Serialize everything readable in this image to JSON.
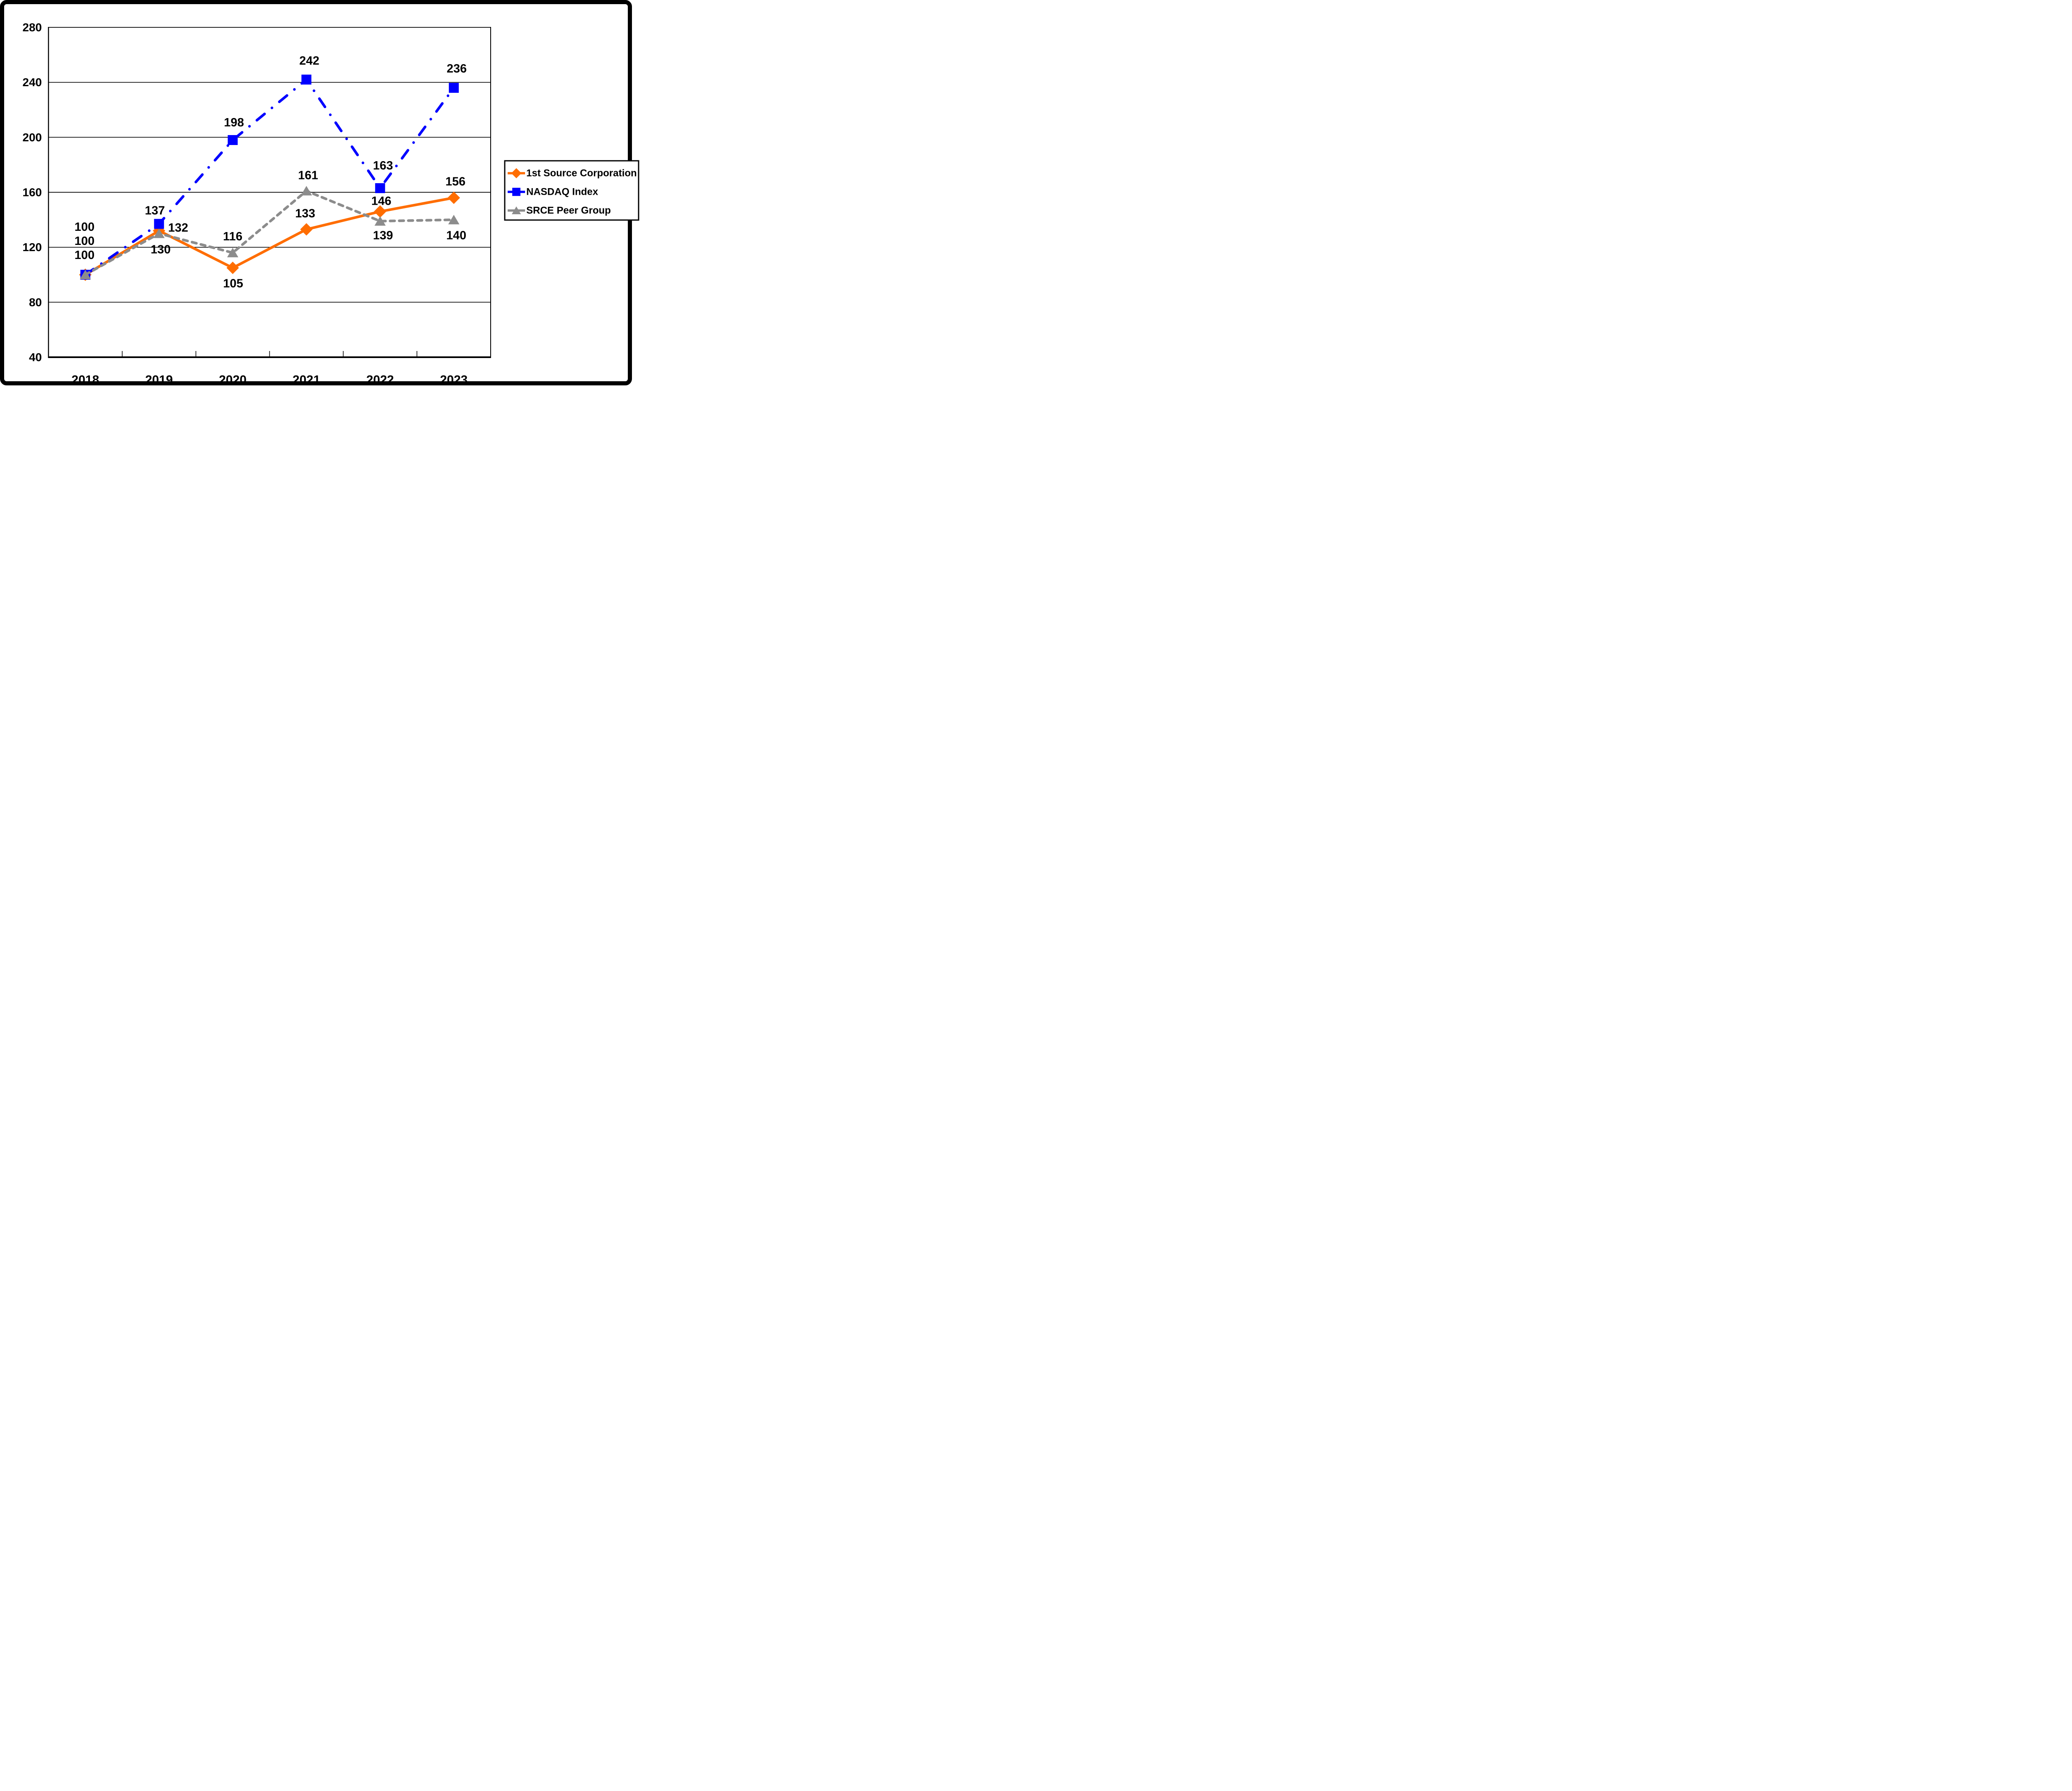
{
  "figure": {
    "background": "#ffffff",
    "border_color": "#000000"
  },
  "chart_data": {
    "type": "line",
    "title": "",
    "categories": [
      "2018",
      "2019",
      "2020",
      "2021",
      "2022",
      "2023"
    ],
    "ylim": [
      40,
      280
    ],
    "ytick_step": 40,
    "yticks": [
      "40",
      "80",
      "120",
      "160",
      "200",
      "240",
      "280"
    ],
    "grid": "horizontal",
    "legend_position": "right",
    "axis_color": "#000000",
    "series": [
      {
        "name": "1st Source Corporation",
        "color": "#FF6D00",
        "marker": "diamond",
        "line_style": "solid",
        "values": [
          100,
          132,
          105,
          133,
          146,
          156
        ],
        "point_labels": [
          "100",
          "132",
          "105",
          "133",
          "146",
          "156"
        ],
        "label_offsets": [
          [
            -2,
            -81
          ],
          [
            22,
            -7
          ],
          [
            1,
            38
          ],
          [
            -3,
            -38
          ],
          [
            3,
            -25
          ],
          [
            4,
            -39
          ]
        ],
        "label_anchors": [
          "middle",
          "start",
          "middle",
          "middle",
          "middle",
          "middle"
        ]
      },
      {
        "name": "NASDAQ Index",
        "color": "#0000FF",
        "marker": "square",
        "line_style": "dash-dot",
        "values": [
          100,
          137,
          198,
          242,
          163,
          236
        ],
        "point_labels": [
          "100",
          "137",
          "198",
          "242",
          "163",
          "236"
        ],
        "label_offsets": [
          [
            -2,
            -115
          ],
          [
            -10,
            -32
          ],
          [
            3,
            -42
          ],
          [
            7,
            -45
          ],
          [
            7,
            -54
          ],
          [
            7,
            -46
          ]
        ],
        "label_anchors": [
          "middle",
          "middle",
          "middle",
          "middle",
          "middle",
          "middle"
        ]
      },
      {
        "name": "SRCE Peer Group",
        "color": "#8C8C8C",
        "marker": "triangle",
        "line_style": "dashed",
        "values": [
          100,
          130,
          116,
          161,
          139,
          140
        ],
        "point_labels": [
          "100",
          "130",
          "116",
          "161",
          "139",
          "140"
        ],
        "label_offsets": [
          [
            -2,
            -47
          ],
          [
            4,
            39
          ],
          [
            0,
            -39
          ],
          [
            4,
            -37
          ],
          [
            7,
            35
          ],
          [
            6,
            38
          ]
        ],
        "label_anchors": [
          "middle",
          "middle",
          "middle",
          "middle",
          "middle",
          "middle"
        ]
      }
    ]
  }
}
